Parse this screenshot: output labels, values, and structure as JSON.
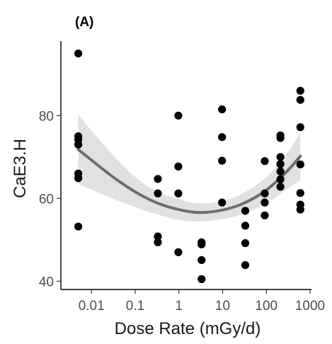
{
  "chart_data": {
    "type": "scatter",
    "panel_label": "(A)",
    "xlabel": "Dose Rate (mGy/d)",
    "ylabel": "CaE3.H",
    "x_scale": "log",
    "xlim": [
      0.0025,
      1000
    ],
    "ylim": [
      38,
      98
    ],
    "x_ticks": [
      {
        "value": 0.01,
        "label": "0.01"
      },
      {
        "value": 0.1,
        "label": "0.1"
      },
      {
        "value": 1,
        "label": "1"
      },
      {
        "value": 10,
        "label": "10"
      },
      {
        "value": 100,
        "label": "100"
      },
      {
        "value": 1000,
        "label": "1000"
      }
    ],
    "y_ticks": [
      {
        "value": 40,
        "label": "40"
      },
      {
        "value": 60,
        "label": "60"
      },
      {
        "value": 80,
        "label": "80"
      }
    ],
    "grid": false,
    "legend": "none",
    "points": [
      {
        "x": 0.005,
        "y": 95.0
      },
      {
        "x": 0.005,
        "y": 75.0
      },
      {
        "x": 0.005,
        "y": 74.2
      },
      {
        "x": 0.005,
        "y": 73.0
      },
      {
        "x": 0.005,
        "y": 66.0
      },
      {
        "x": 0.005,
        "y": 64.9
      },
      {
        "x": 0.005,
        "y": 53.2
      },
      {
        "x": 0.33,
        "y": 64.7
      },
      {
        "x": 0.33,
        "y": 61.2
      },
      {
        "x": 0.33,
        "y": 50.8
      },
      {
        "x": 0.33,
        "y": 49.4
      },
      {
        "x": 0.97,
        "y": 80.0
      },
      {
        "x": 0.97,
        "y": 67.7
      },
      {
        "x": 0.97,
        "y": 61.2
      },
      {
        "x": 0.97,
        "y": 47.0
      },
      {
        "x": 3.3,
        "y": 49.4
      },
      {
        "x": 3.3,
        "y": 48.9
      },
      {
        "x": 3.3,
        "y": 45.1
      },
      {
        "x": 3.3,
        "y": 40.5
      },
      {
        "x": 9.7,
        "y": 81.5
      },
      {
        "x": 9.7,
        "y": 74.8
      },
      {
        "x": 9.7,
        "y": 69.1
      },
      {
        "x": 9.7,
        "y": 59.0
      },
      {
        "x": 33,
        "y": 57.0
      },
      {
        "x": 33,
        "y": 53.4
      },
      {
        "x": 33,
        "y": 49.2
      },
      {
        "x": 33,
        "y": 43.9
      },
      {
        "x": 92,
        "y": 69.0
      },
      {
        "x": 92,
        "y": 61.2
      },
      {
        "x": 92,
        "y": 59.0
      },
      {
        "x": 92,
        "y": 55.9
      },
      {
        "x": 210,
        "y": 75.2
      },
      {
        "x": 210,
        "y": 74.6
      },
      {
        "x": 210,
        "y": 70.0
      },
      {
        "x": 210,
        "y": 68.3
      },
      {
        "x": 210,
        "y": 66.5
      },
      {
        "x": 210,
        "y": 64.6
      },
      {
        "x": 210,
        "y": 62.8
      },
      {
        "x": 600,
        "y": 86.0
      },
      {
        "x": 600,
        "y": 83.8
      },
      {
        "x": 600,
        "y": 77.2
      },
      {
        "x": 600,
        "y": 68.2
      },
      {
        "x": 600,
        "y": 61.3
      },
      {
        "x": 600,
        "y": 58.5
      },
      {
        "x": 600,
        "y": 57.3
      }
    ],
    "fit": {
      "x": [
        0.005,
        0.03,
        0.1,
        0.3,
        1,
        3,
        10,
        30,
        100,
        300,
        600
      ],
      "y": [
        71.8,
        65.3,
        61.6,
        59.0,
        57.3,
        56.6,
        57.2,
        58.8,
        62.0,
        66.6,
        70.2
      ],
      "lower": [
        63.5,
        60.0,
        57.9,
        56.2,
        54.8,
        54.4,
        55.0,
        56.3,
        58.8,
        62.3,
        64.5
      ],
      "upper": [
        80.2,
        70.6,
        65.2,
        61.8,
        59.8,
        58.8,
        59.4,
        61.3,
        65.2,
        70.9,
        76.0
      ]
    }
  }
}
